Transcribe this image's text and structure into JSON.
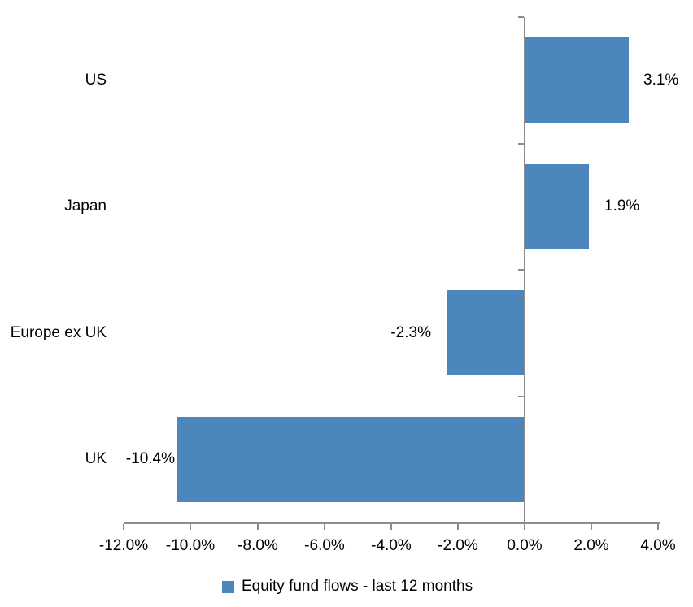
{
  "chart_data": {
    "type": "bar",
    "orientation": "horizontal",
    "title": "",
    "categories": [
      "US",
      "Japan",
      "Europe ex UK",
      "UK"
    ],
    "values": [
      3.1,
      1.9,
      -2.3,
      -10.4
    ],
    "value_labels": [
      "3.1%",
      "1.9%",
      "-2.3%",
      "-10.4%"
    ],
    "legend": "Equity fund flows - last 12 months",
    "legend_position": "bottom",
    "x_ticks": [
      -12,
      -10,
      -8,
      -6,
      -4,
      -2,
      0,
      2,
      4
    ],
    "x_tick_labels": [
      "-12.0%",
      "-10.0%",
      "-8.0%",
      "-6.0%",
      "-4.0%",
      "-2.0%",
      "0.0%",
      "2.0%",
      "4.0%"
    ],
    "xlim": [
      -12,
      4
    ],
    "grid": false,
    "bar_color": "#4D86BC",
    "axis_color": "#8C8C8C",
    "text_color": "#000000",
    "layout": {
      "label_gaps": [
        18,
        19,
        20,
        2
      ]
    }
  }
}
